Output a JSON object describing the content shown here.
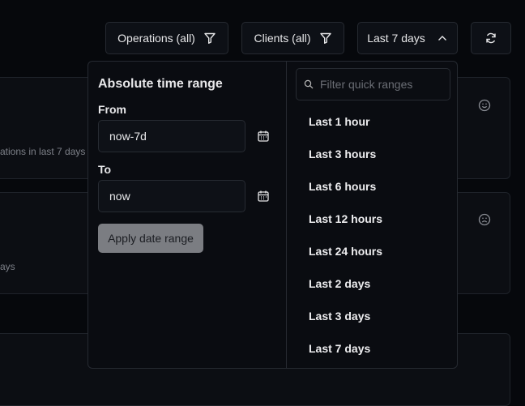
{
  "toolbar": {
    "operations": "Operations (all)",
    "clients": "Clients (all)",
    "range": "Last 7 days"
  },
  "background": {
    "card1_text": "ations in last 7 days",
    "card2_text": "ays"
  },
  "absolute": {
    "title": "Absolute time range",
    "from_label": "From",
    "from_value": "now-7d",
    "to_label": "To",
    "to_value": "now",
    "apply": "Apply date range"
  },
  "quick": {
    "placeholder": "Filter quick ranges",
    "items": [
      "Last 1 hour",
      "Last 3 hours",
      "Last 6 hours",
      "Last 12 hours",
      "Last 24 hours",
      "Last 2 days",
      "Last 3 days",
      "Last 7 days"
    ]
  }
}
